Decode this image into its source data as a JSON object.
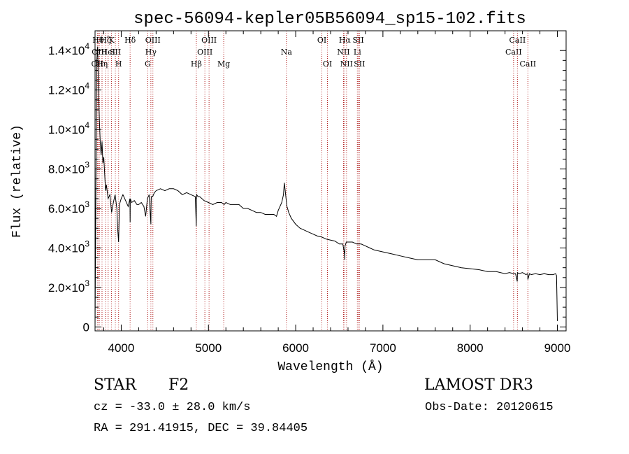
{
  "chart_data": {
    "type": "line",
    "title": "spec-56094-kepler05B56094_sp15-102.fits",
    "xlabel": "Wavelength (Å)",
    "ylabel": "Flux (relative)",
    "xlim": [
      3700,
      9100
    ],
    "ylim": [
      -200,
      15000
    ],
    "x_ticks": [
      4000,
      5000,
      6000,
      7000,
      8000,
      9000
    ],
    "x_tick_labels": [
      "4000",
      "5000",
      "6000",
      "7000",
      "8000",
      "9000"
    ],
    "y_ticks": [
      {
        "value": 0,
        "mantissa": "0",
        "exponent": ""
      },
      {
        "value": 2000,
        "mantissa": "2.0×10",
        "exponent": "3"
      },
      {
        "value": 4000,
        "mantissa": "4.0×10",
        "exponent": "3"
      },
      {
        "value": 6000,
        "mantissa": "6.0×10",
        "exponent": "3"
      },
      {
        "value": 8000,
        "mantissa": "8.0×10",
        "exponent": "3"
      },
      {
        "value": 10000,
        "mantissa": "1.0×10",
        "exponent": "4"
      },
      {
        "value": 12000,
        "mantissa": "1.2×10",
        "exponent": "4"
      },
      {
        "value": 14000,
        "mantissa": "1.4×10",
        "exponent": "4"
      }
    ],
    "series": [
      {
        "name": "spectrum",
        "x": [
          3700,
          3710,
          3720,
          3730,
          3740,
          3750,
          3760,
          3770,
          3780,
          3790,
          3800,
          3810,
          3820,
          3830,
          3850,
          3870,
          3890,
          3910,
          3930,
          3950,
          3960,
          3970,
          3980,
          4000,
          4020,
          4050,
          4080,
          4100,
          4102,
          4104,
          4120,
          4150,
          4180,
          4200,
          4230,
          4260,
          4280,
          4300,
          4320,
          4340,
          4342,
          4345,
          4360,
          4380,
          4400,
          4450,
          4500,
          4550,
          4600,
          4650,
          4700,
          4750,
          4800,
          4850,
          4860,
          4862,
          4864,
          4866,
          4880,
          4900,
          4950,
          5000,
          5050,
          5100,
          5150,
          5180,
          5200,
          5250,
          5300,
          5350,
          5400,
          5450,
          5500,
          5550,
          5600,
          5650,
          5700,
          5750,
          5780,
          5800,
          5820,
          5840,
          5860,
          5870,
          5880,
          5890,
          5900,
          5920,
          5950,
          6000,
          6050,
          6100,
          6150,
          6200,
          6250,
          6300,
          6350,
          6400,
          6450,
          6500,
          6540,
          6560,
          6563,
          6566,
          6580,
          6600,
          6650,
          6700,
          6750,
          6800,
          6850,
          6900,
          7000,
          7100,
          7200,
          7300,
          7400,
          7500,
          7600,
          7700,
          7800,
          7900,
          8000,
          8100,
          8200,
          8300,
          8400,
          8450,
          8500,
          8520,
          8540,
          8542,
          8560,
          8600,
          8640,
          8660,
          8662,
          8680,
          8700,
          8750,
          8800,
          8850,
          8900,
          8950,
          8980,
          8990,
          8995,
          9000
        ],
        "y": [
          0,
          7000,
          13500,
          14200,
          12000,
          10500,
          9300,
          8700,
          9400,
          8300,
          8600,
          7800,
          6900,
          7200,
          6500,
          6700,
          5800,
          6300,
          6700,
          6000,
          4900,
          4300,
          6200,
          6500,
          6700,
          6400,
          6100,
          6500,
          5300,
          6500,
          6300,
          6400,
          6200,
          6200,
          6300,
          6100,
          5600,
          6500,
          6700,
          5200,
          6100,
          6600,
          6600,
          6800,
          6900,
          7000,
          6900,
          7000,
          7000,
          6900,
          6700,
          6800,
          6700,
          6600,
          5100,
          6500,
          6500,
          6700,
          6600,
          6600,
          6400,
          6300,
          6200,
          6300,
          6300,
          6200,
          6300,
          6200,
          6200,
          6200,
          6000,
          6000,
          5900,
          5800,
          5800,
          5700,
          5700,
          5700,
          5600,
          5900,
          6100,
          6300,
          6700,
          7300,
          6900,
          6500,
          6100,
          5800,
          5500,
          5200,
          5000,
          4900,
          4800,
          4700,
          4600,
          4550,
          4450,
          4400,
          4350,
          4200,
          4200,
          3700,
          3400,
          4100,
          4300,
          4300,
          4300,
          4200,
          4200,
          4100,
          4000,
          3900,
          3800,
          3700,
          3600,
          3500,
          3400,
          3400,
          3400,
          3200,
          3100,
          3000,
          2950,
          2900,
          2800,
          2800,
          2700,
          2750,
          2700,
          2700,
          2300,
          2750,
          2700,
          2750,
          2650,
          2700,
          2400,
          2700,
          2650,
          2700,
          2650,
          2700,
          2650,
          2650,
          2700,
          2600,
          1500,
          300
        ]
      }
    ],
    "line_markers": [
      {
        "label": "OII",
        "x": 3727,
        "row": 2
      },
      {
        "label": "Hθ",
        "x": 3735,
        "row": 0
      },
      {
        "label": "OIII",
        "x": 3750,
        "row": 1
      },
      {
        "label": "Hη",
        "x": 3780,
        "row": 2
      },
      {
        "label": "Hζ",
        "x": 3820,
        "row": 0
      },
      {
        "label": "HeI",
        "x": 3850,
        "row": 1
      },
      {
        "label": "K",
        "x": 3889,
        "row": 0
      },
      {
        "label": "SII",
        "x": 3933,
        "row": 1
      },
      {
        "label": "H",
        "x": 3970,
        "row": 2
      },
      {
        "label": "Hδ",
        "x": 4102,
        "row": 0
      },
      {
        "label": "G",
        "x": 4304,
        "row": 2
      },
      {
        "label": "Hγ",
        "x": 4340,
        "row": 1
      },
      {
        "label": "OIII",
        "x": 4363,
        "row": 0
      },
      {
        "label": "Hβ",
        "x": 4861,
        "row": 2
      },
      {
        "label": "OIII",
        "x": 4959,
        "row": 1
      },
      {
        "label": "OIII",
        "x": 5007,
        "row": 0
      },
      {
        "label": "Mg",
        "x": 5175,
        "row": 2
      },
      {
        "label": "Na",
        "x": 5894,
        "row": 1
      },
      {
        "label": "OI",
        "x": 6300,
        "row": 0
      },
      {
        "label": "OI",
        "x": 6364,
        "row": 2
      },
      {
        "label": "NII",
        "x": 6548,
        "row": 1
      },
      {
        "label": "Hα",
        "x": 6563,
        "row": 0
      },
      {
        "label": "NII",
        "x": 6583,
        "row": 2
      },
      {
        "label": "Li",
        "x": 6707,
        "row": 1
      },
      {
        "label": "SII",
        "x": 6717,
        "row": 0
      },
      {
        "label": "SII",
        "x": 6731,
        "row": 2
      },
      {
        "label": "CaII",
        "x": 8498,
        "row": 1
      },
      {
        "label": "CaII",
        "x": 8542,
        "row": 0
      },
      {
        "label": "CaII",
        "x": 8662,
        "row": 2
      }
    ]
  },
  "info": {
    "object_class": "STAR",
    "subclass": "F2",
    "survey": "LAMOST DR3",
    "redshift": "cz = -33.0 ± 28.0 km/s",
    "obs_date": "Obs-Date: 20120615",
    "coordinates": "RA = 291.41915, DEC =  39.84405"
  }
}
